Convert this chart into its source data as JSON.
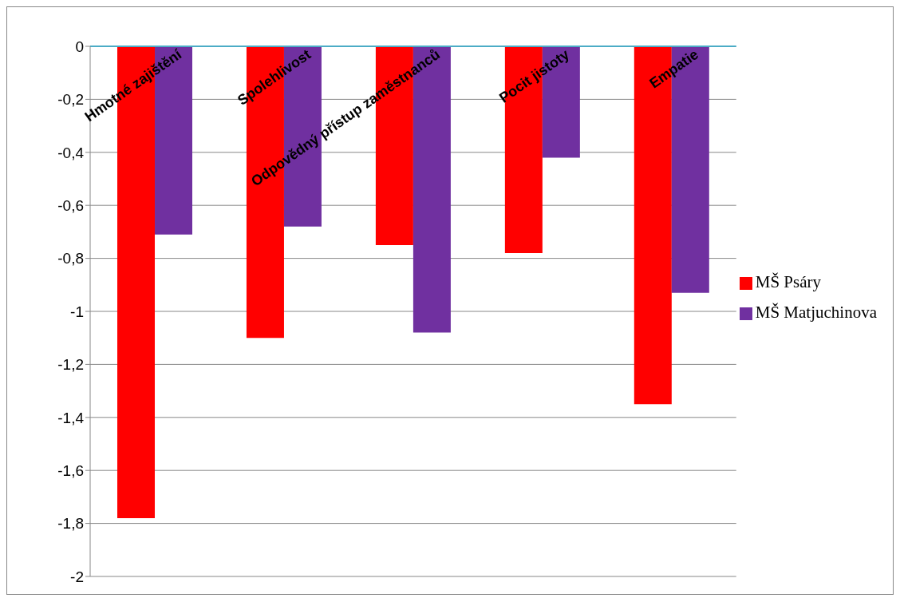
{
  "chart_data": {
    "type": "bar",
    "categories": [
      "Hmotné zajištění",
      "Spolehlivost",
      "Odpovědný přístup zaměstnanců",
      "Pocit jistoty",
      "Empatie"
    ],
    "series": [
      {
        "name": "MŠ Psáry",
        "color": "#ff0000",
        "values": [
          -1.78,
          -1.1,
          -0.75,
          -0.78,
          -1.35
        ]
      },
      {
        "name": "MŠ Matjuchinova",
        "color": "#7030a0",
        "values": [
          -0.71,
          -0.68,
          -1.08,
          -0.42,
          -0.93
        ]
      }
    ],
    "ylim": [
      -2,
      0
    ],
    "yticks": [
      0,
      {
        "value": -0.2,
        "label": "-0,2"
      },
      {
        "value": -0.4,
        "label": "-0,4"
      },
      {
        "value": -0.6,
        "label": "-0,6"
      },
      {
        "value": -0.8,
        "label": "-0,8"
      },
      -1,
      {
        "value": -1.2,
        "label": "-1,2"
      },
      {
        "value": -1.4,
        "label": "-1,4"
      },
      {
        "value": -1.6,
        "label": "-1,6"
      },
      {
        "value": -1.8,
        "label": "-1,8"
      },
      -2
    ],
    "grid": "y",
    "legend": "right"
  }
}
